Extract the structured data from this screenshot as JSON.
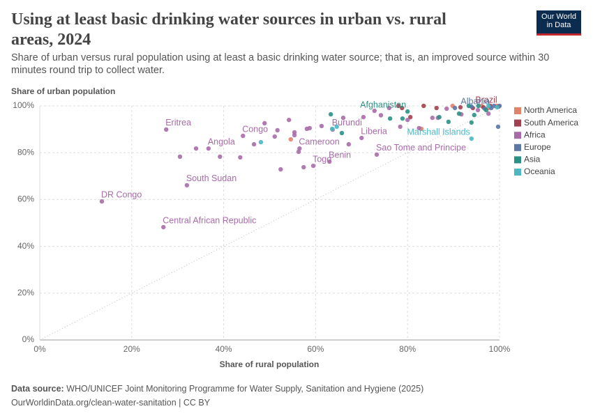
{
  "title": "Using at least basic drinking water sources in urban vs. rural areas, 2024",
  "subtitle": "Share of urban versus rural population using at least a basic drinking water source; that is, an improved source within 30 minutes round trip to collect water.",
  "logo_lines": [
    "Our World",
    "in Data"
  ],
  "source_label": "Data source:",
  "source": "WHO/UNICEF Joint Monitoring Programme for Water Supply, Sanitation and Hygiene (2025)",
  "footer_url": "OurWorldinData.org/clean-water-sanitation | CC BY",
  "chart_data": {
    "type": "scatter",
    "x_label": "Share of rural population",
    "y_label": "Share of urban population",
    "xlim": [
      0,
      100
    ],
    "ylim": [
      0,
      100
    ],
    "xticks": [
      {
        "value": 0,
        "label": "0%"
      },
      {
        "value": 20,
        "label": "20%"
      },
      {
        "value": 40,
        "label": "40%"
      },
      {
        "value": 60,
        "label": "60%"
      },
      {
        "value": 80,
        "label": "80%"
      },
      {
        "value": 100,
        "label": "100%"
      }
    ],
    "yticks": [
      {
        "value": 0,
        "label": "0%"
      },
      {
        "value": 20,
        "label": "20%"
      },
      {
        "value": 40,
        "label": "40%"
      },
      {
        "value": 60,
        "label": "60%"
      },
      {
        "value": 80,
        "label": "80%"
      },
      {
        "value": 100,
        "label": "100%"
      }
    ],
    "grid": true,
    "diagonal": true,
    "legend": "right",
    "series": [
      {
        "name": "North America",
        "color": "#e3826a",
        "x": [
          54.6,
          83.0,
          96.1,
          99.4,
          89.8,
          97.6
        ],
        "values": [
          85.7,
          90.2,
          100,
          100,
          100,
          99.1
        ],
        "labels": [
          null,
          null,
          null,
          null,
          null,
          null
        ]
      },
      {
        "name": "South America",
        "color": "#a2404f",
        "x": [
          78.0,
          78.8,
          83.5,
          80.6,
          86.3,
          91.5,
          94.2,
          99.8,
          98.0,
          96.5
        ],
        "values": [
          100,
          99.1,
          100,
          95.2,
          99.1,
          99.4,
          99.1,
          99.7,
          100,
          99.4
        ],
        "labels": [
          null,
          null,
          null,
          null,
          null,
          null,
          null,
          "Brazil",
          null,
          null
        ]
      },
      {
        "name": "Africa",
        "color": "#a86ba8",
        "x": [
          27.5,
          13.5,
          26.9,
          32.0,
          36.7,
          44.2,
          56.5,
          59.5,
          63.0,
          70.0,
          73.3,
          63.7,
          30.5,
          34.0,
          39.2,
          43.6,
          46.6,
          48.9,
          51.7,
          52.4,
          51.1,
          54.2,
          55.4,
          55.4,
          56.3,
          57.4,
          58.1,
          58.7,
          61.3,
          66.0,
          67.2,
          70.4,
          72.8,
          74.2,
          76.0,
          78.4,
          80.0,
          82.5,
          85.4,
          86.6,
          88.5,
          91.7,
          95.3,
          97.6
        ],
        "values": [
          89.9,
          59.2,
          48.2,
          66.1,
          81.8,
          87.2,
          81.8,
          74.4,
          76.2,
          86.3,
          79.2,
          89.9,
          78.3,
          81.8,
          78.3,
          78.0,
          83.6,
          92.6,
          89.6,
          72.9,
          86.9,
          94.0,
          88.7,
          87.5,
          80.4,
          73.8,
          90.2,
          90.5,
          91.4,
          94.9,
          83.6,
          95.2,
          97.9,
          96.0,
          99.1,
          91.1,
          94.0,
          90.5,
          94.9,
          94.9,
          98.8,
          96.4,
          98.2,
          96.7
        ],
        "labels": [
          "Eritrea",
          "DR Congo",
          "Central African Republic",
          "South Sudan",
          "Angola",
          "Congo",
          "Cameroon",
          "Togo",
          "Benin",
          "Liberia",
          "Sao Tome and Principe",
          "Burundi",
          null,
          null,
          null,
          null,
          null,
          null,
          null,
          null,
          null,
          null,
          null,
          null,
          null,
          null,
          null,
          null,
          null,
          null,
          null,
          null,
          null,
          null,
          null,
          null,
          null,
          null,
          null,
          null,
          null,
          null,
          null,
          null
        ]
      },
      {
        "name": "Europe",
        "color": "#5c76a6",
        "x": [
          98.2,
          99.7,
          90.3,
          96.8,
          98.8,
          100,
          93.9
        ],
        "values": [
          99.1,
          91.1,
          99.1,
          98.8,
          100,
          100,
          99.7
        ],
        "labels": [
          "Albania",
          null,
          null,
          null,
          null,
          null,
          null
        ]
      },
      {
        "name": "Asia",
        "color": "#2a9184",
        "x": [
          80.0,
          63.3,
          65.7,
          76.2,
          78.9,
          88.9,
          93.9,
          91.2,
          93.3,
          95.4,
          94.5,
          97.1,
          86.9
        ],
        "values": [
          97.6,
          96.4,
          88.4,
          94.6,
          94.6,
          93.2,
          92.9,
          96.7,
          100,
          100,
          96.1,
          98.2,
          95.2
        ],
        "labels": [
          "Afghanistan",
          null,
          null,
          null,
          null,
          null,
          null,
          null,
          null,
          null,
          null,
          null,
          null
        ]
      },
      {
        "name": "Oceania",
        "color": "#4db8c4",
        "x": [
          93.9,
          48.1,
          63.6,
          64.6,
          97.6,
          99.5
        ],
        "values": [
          86.0,
          84.5,
          90.2,
          91.1,
          100,
          99.4
        ],
        "labels": [
          "Marshall Islands",
          null,
          null,
          null,
          null,
          null
        ]
      }
    ]
  }
}
